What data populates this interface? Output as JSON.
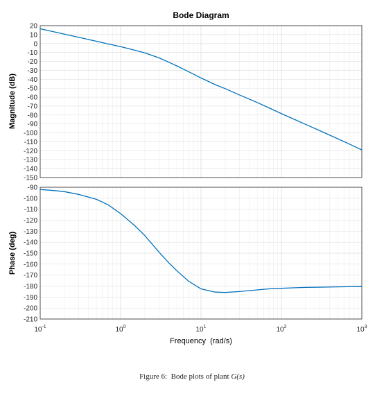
{
  "chart_data": [
    {
      "type": "line",
      "title": "Bode Diagram",
      "xlabel": "",
      "ylabel": "Magnitude (dB)",
      "xscale": "log",
      "xlim": [
        0.1,
        1000
      ],
      "ylim": [
        -150,
        20
      ],
      "yticks": [
        20,
        10,
        0,
        -10,
        -20,
        -30,
        -40,
        -50,
        -60,
        -70,
        -80,
        -90,
        -100,
        -110,
        -120,
        -130,
        -140,
        -150
      ],
      "grid": true,
      "color": "#0072bd",
      "series": [
        {
          "x": [
            0.1,
            0.15,
            0.2,
            0.3,
            0.5,
            0.7,
            1,
            1.5,
            2,
            3,
            4,
            5,
            7,
            10,
            15,
            20,
            30,
            50,
            70,
            100,
            150,
            200,
            300,
            500,
            700,
            1000
          ],
          "values": [
            16.5,
            13,
            10.5,
            7,
            2.5,
            -0.5,
            -3.5,
            -7.5,
            -10.5,
            -16,
            -21,
            -25,
            -31.5,
            -38.5,
            -46,
            -50.5,
            -57.5,
            -66,
            -72,
            -78.5,
            -85.5,
            -90.5,
            -97.5,
            -106.5,
            -112.5,
            -119
          ]
        }
      ]
    },
    {
      "type": "line",
      "title": "",
      "xlabel": "Frequency  (rad/s)",
      "ylabel": "Phase (deg)",
      "xscale": "log",
      "xlim": [
        0.1,
        1000
      ],
      "ylim": [
        -210,
        -90
      ],
      "yticks": [
        -90,
        -100,
        -110,
        -120,
        -130,
        -140,
        -150,
        -160,
        -170,
        -180,
        -190,
        -200,
        -210
      ],
      "xticks": [
        {
          "base": "10",
          "exp": "-1"
        },
        {
          "base": "10",
          "exp": "0"
        },
        {
          "base": "10",
          "exp": "1"
        },
        {
          "base": "10",
          "exp": "2"
        },
        {
          "base": "10",
          "exp": "3"
        }
      ],
      "grid": true,
      "color": "#0072bd",
      "series": [
        {
          "x": [
            0.1,
            0.15,
            0.2,
            0.3,
            0.5,
            0.7,
            1,
            1.5,
            2,
            3,
            4,
            5,
            7,
            10,
            15,
            20,
            30,
            50,
            70,
            100,
            150,
            200,
            300,
            500,
            700,
            1000
          ],
          "values": [
            -92,
            -93,
            -94,
            -96.5,
            -101,
            -106,
            -114,
            -125,
            -134,
            -149,
            -159,
            -166,
            -175.5,
            -182.5,
            -185.5,
            -185.8,
            -185,
            -183.5,
            -182.5,
            -182,
            -181.5,
            -181.2,
            -181,
            -180.7,
            -180.6,
            -180.5
          ]
        }
      ]
    }
  ],
  "caption": {
    "prefix": "Figure 6:  Bode plots of plant ",
    "math": "G(s)"
  }
}
